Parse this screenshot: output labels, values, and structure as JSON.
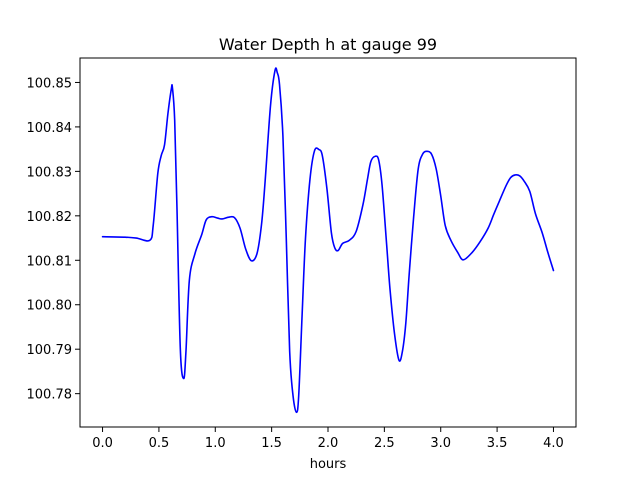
{
  "chart_data": {
    "type": "line",
    "title": "Water Depth h at gauge 99",
    "xlabel": "hours",
    "ylabel": "",
    "xlim": [
      -0.2,
      4.2
    ],
    "ylim": [
      100.7725,
      100.8555
    ],
    "xticks": [
      0.0,
      0.5,
      1.0,
      1.5,
      2.0,
      2.5,
      3.0,
      3.5,
      4.0
    ],
    "xtick_labels": [
      "0.0",
      "0.5",
      "1.0",
      "1.5",
      "2.0",
      "2.5",
      "3.0",
      "3.5",
      "4.0"
    ],
    "yticks": [
      100.78,
      100.79,
      100.8,
      100.81,
      100.82,
      100.83,
      100.84,
      100.85
    ],
    "ytick_labels": [
      "100.78",
      "100.79",
      "100.80",
      "100.81",
      "100.82",
      "100.83",
      "100.84",
      "100.85"
    ],
    "grid": false,
    "legend": "none",
    "series": [
      {
        "color": "#0000ff",
        "x": [
          0.0,
          0.2,
          0.3,
          0.42,
          0.45,
          0.49,
          0.52,
          0.55,
          0.58,
          0.61,
          0.62,
          0.64,
          0.66,
          0.69,
          0.72,
          0.74,
          0.77,
          0.82,
          0.88,
          0.92,
          0.97,
          1.02,
          1.06,
          1.12,
          1.17,
          1.22,
          1.27,
          1.32,
          1.37,
          1.41,
          1.44,
          1.49,
          1.53,
          1.55,
          1.57,
          1.6,
          1.63,
          1.66,
          1.69,
          1.72,
          1.74,
          1.77,
          1.8,
          1.84,
          1.88,
          1.92,
          1.95,
          1.99,
          2.03,
          2.06,
          2.09,
          2.13,
          2.19,
          2.25,
          2.31,
          2.35,
          2.38,
          2.42,
          2.45,
          2.48,
          2.52,
          2.55,
          2.59,
          2.63,
          2.66,
          2.69,
          2.72,
          2.76,
          2.8,
          2.84,
          2.88,
          2.92,
          2.96,
          3.0,
          3.04,
          3.09,
          3.15,
          3.2,
          3.28,
          3.35,
          3.42,
          3.47,
          3.52,
          3.58,
          3.62,
          3.66,
          3.7,
          3.74,
          3.79,
          3.84,
          3.9,
          3.95,
          4.0
        ],
        "y": [
          100.8153,
          100.8152,
          100.815,
          100.8145,
          100.818,
          100.8295,
          100.8335,
          100.836,
          100.843,
          100.8485,
          100.8488,
          100.8415,
          100.822,
          100.79,
          100.7834,
          100.7895,
          100.8055,
          100.8115,
          100.8158,
          100.8191,
          100.8198,
          100.8195,
          100.8193,
          100.8197,
          100.8196,
          100.8172,
          100.8125,
          100.8099,
          100.8115,
          100.818,
          100.827,
          100.8448,
          100.8527,
          100.8522,
          100.8495,
          100.838,
          100.8148,
          100.7895,
          100.7795,
          100.7758,
          100.7795,
          100.7975,
          100.8148,
          100.8282,
          100.8346,
          100.8349,
          100.8335,
          100.8262,
          100.8162,
          100.8128,
          100.8122,
          100.8138,
          100.8145,
          100.8165,
          100.8225,
          100.8282,
          100.8322,
          100.8334,
          100.8325,
          100.8268,
          100.8136,
          100.8035,
          100.7935,
          100.7875,
          100.7895,
          100.7958,
          100.8068,
          100.8198,
          100.8305,
          100.8339,
          100.8345,
          100.8338,
          100.8305,
          100.8245,
          100.8178,
          100.8145,
          100.8118,
          100.8101,
          100.8118,
          100.8142,
          100.8172,
          100.8203,
          100.8233,
          100.8268,
          100.8286,
          100.8292,
          100.829,
          100.8278,
          100.8255,
          100.8205,
          100.8162,
          100.8118,
          100.8077
        ]
      }
    ]
  }
}
